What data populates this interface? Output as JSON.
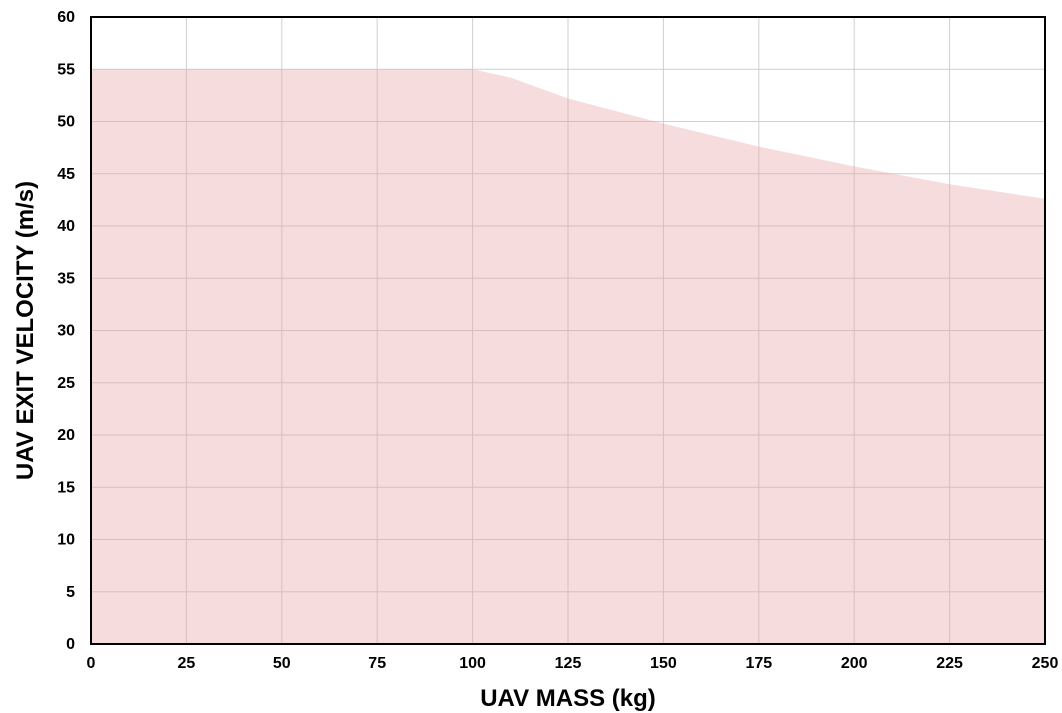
{
  "chart_data": {
    "type": "area",
    "title": "",
    "xlabel": "UAV MASS (kg)",
    "ylabel": "UAV EXIT VELOCITY (m/s)",
    "xlim": [
      0,
      250
    ],
    "ylim": [
      0,
      60
    ],
    "xticks": [
      0,
      25,
      50,
      75,
      100,
      125,
      150,
      175,
      200,
      225,
      250
    ],
    "yticks": [
      0,
      5,
      10,
      15,
      20,
      25,
      30,
      35,
      40,
      45,
      50,
      55,
      60
    ],
    "grid": true,
    "legend": "none",
    "series": [
      {
        "x": [
          0,
          25,
          50,
          75,
          100,
          110,
          125,
          150,
          175,
          200,
          225,
          250
        ],
        "y": [
          55,
          55,
          55,
          55,
          55,
          54.2,
          52.2,
          49.8,
          47.6,
          45.7,
          44,
          42.6
        ]
      }
    ],
    "colors": {
      "fill": "#f5dcdc",
      "grid": "#cfcfcf",
      "axis": "#000000"
    }
  }
}
